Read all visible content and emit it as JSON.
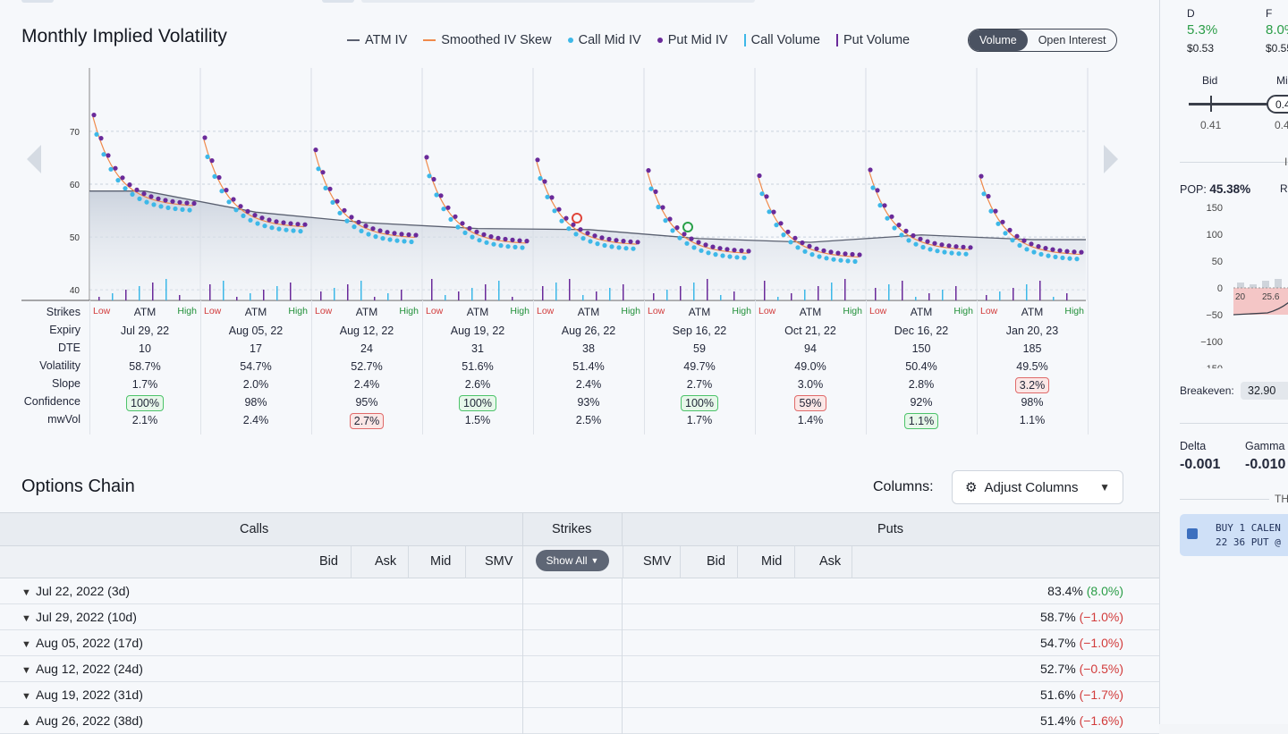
{
  "chart": {
    "title": "Monthly Implied Volatility",
    "legend": [
      {
        "label": "ATM IV",
        "kind": "line",
        "color": "#5a6070"
      },
      {
        "label": "Smoothed IV Skew",
        "kind": "line",
        "color": "#f08a4b"
      },
      {
        "label": "Call Mid IV",
        "kind": "dot",
        "color": "#3db8e8"
      },
      {
        "label": "Put Mid IV",
        "kind": "dot",
        "color": "#6a2a9a"
      },
      {
        "label": "Call Volume",
        "kind": "bar",
        "color": "#3db8e8"
      },
      {
        "label": "Put Volume",
        "kind": "bar",
        "color": "#6a2a9a"
      }
    ],
    "toggle": {
      "active": "Volume",
      "inactive": "Open Interest"
    }
  },
  "chart_data": {
    "type": "line",
    "yticks": [
      40,
      50,
      60,
      70
    ],
    "ylim": [
      38,
      82
    ],
    "series": [
      {
        "name": "ATM IV",
        "values": [
          58.7,
          54.7,
          52.7,
          51.6,
          51.4,
          49.7,
          49.0,
          50.4,
          49.5
        ]
      }
    ]
  },
  "row_labels": [
    "Strikes",
    "Expiry",
    "DTE",
    "Volatility",
    "Slope",
    "Confidence",
    "mwVol"
  ],
  "strike_labels": {
    "low": "Low",
    "atm": "ATM",
    "high": "High"
  },
  "expiries": [
    {
      "expiry": "Jul 29, 22",
      "dte": "10",
      "vol": "58.7%",
      "slope": "1.7%",
      "slope_flag": "",
      "conf": "100%",
      "conf_flag": "g",
      "mw": "2.1%",
      "mw_flag": ""
    },
    {
      "expiry": "Aug 05, 22",
      "dte": "17",
      "vol": "54.7%",
      "slope": "2.0%",
      "slope_flag": "",
      "conf": "98%",
      "conf_flag": "",
      "mw": "2.4%",
      "mw_flag": ""
    },
    {
      "expiry": "Aug 12, 22",
      "dte": "24",
      "vol": "52.7%",
      "slope": "2.4%",
      "slope_flag": "",
      "conf": "95%",
      "conf_flag": "",
      "mw": "2.7%",
      "mw_flag": "r"
    },
    {
      "expiry": "Aug 19, 22",
      "dte": "31",
      "vol": "51.6%",
      "slope": "2.6%",
      "slope_flag": "",
      "conf": "100%",
      "conf_flag": "g",
      "mw": "1.5%",
      "mw_flag": ""
    },
    {
      "expiry": "Aug 26, 22",
      "dte": "38",
      "vol": "51.4%",
      "slope": "2.4%",
      "slope_flag": "",
      "conf": "93%",
      "conf_flag": "",
      "mw": "2.5%",
      "mw_flag": ""
    },
    {
      "expiry": "Sep 16, 22",
      "dte": "59",
      "vol": "49.7%",
      "slope": "2.7%",
      "slope_flag": "",
      "conf": "100%",
      "conf_flag": "g",
      "mw": "1.7%",
      "mw_flag": ""
    },
    {
      "expiry": "Oct 21, 22",
      "dte": "94",
      "vol": "49.0%",
      "slope": "3.0%",
      "slope_flag": "",
      "conf": "59%",
      "conf_flag": "r",
      "mw": "1.4%",
      "mw_flag": ""
    },
    {
      "expiry": "Dec 16, 22",
      "dte": "150",
      "vol": "50.4%",
      "slope": "2.8%",
      "slope_flag": "",
      "conf": "92%",
      "conf_flag": "",
      "mw": "1.1%",
      "mw_flag": "g"
    },
    {
      "expiry": "Jan 20, 23",
      "dte": "185",
      "vol": "49.5%",
      "slope": "3.2%",
      "slope_flag": "r",
      "conf": "98%",
      "conf_flag": "",
      "mw": "1.1%",
      "mw_flag": ""
    }
  ],
  "options_chain": {
    "title": "Options Chain",
    "columns_label": "Columns:",
    "adjust_label": "Adjust Columns",
    "calls_header": "Calls",
    "strikes_header": "Strikes",
    "puts_header": "Puts",
    "call_cols": [
      "Bid",
      "Ask",
      "Mid",
      "SMV"
    ],
    "put_cols": [
      "SMV",
      "Bid",
      "Mid",
      "Ask"
    ],
    "show_all": "Show All",
    "rows": [
      {
        "expiry": "Jul 22, 2022 (3d)",
        "iv": "83.4%",
        "change": "(8.0%)",
        "dir": "up",
        "open": false
      },
      {
        "expiry": "Jul 29, 2022 (10d)",
        "iv": "58.7%",
        "change": "(−1.0%)",
        "dir": "down",
        "open": false
      },
      {
        "expiry": "Aug 05, 2022 (17d)",
        "iv": "54.7%",
        "change": "(−1.0%)",
        "dir": "down",
        "open": false
      },
      {
        "expiry": "Aug 12, 2022 (24d)",
        "iv": "52.7%",
        "change": "(−0.5%)",
        "dir": "down",
        "open": false
      },
      {
        "expiry": "Aug 19, 2022 (31d)",
        "iv": "51.6%",
        "change": "(−1.7%)",
        "dir": "down",
        "open": false
      },
      {
        "expiry": "Aug 26, 2022 (38d)",
        "iv": "51.4%",
        "change": "(−1.6%)",
        "dir": "down",
        "open": true
      }
    ]
  },
  "side": {
    "d_label": "D",
    "d_value": "5.3%",
    "d_price": "$0.53",
    "f_label": "F",
    "f_value": "8.0%",
    "f_price": "$0.55",
    "bid_label": "Bid",
    "bid_value": "0.41",
    "mid_label": "Mi",
    "mid_value": "0.4",
    "mid_value2": "0.4",
    "pop_label": "POP:",
    "pop_value": "45.38%",
    "pop_extra": "R",
    "pnl_ticks": [
      "150",
      "100",
      "50",
      "0",
      "−50",
      "−100",
      "−150"
    ],
    "pnl_x": [
      "20",
      "25.6"
    ],
    "breakeven_label": "Breakeven:",
    "breakeven_value": "32.90",
    "delta_label": "Delta",
    "delta_value": "-0.001",
    "gamma_label": "Gamma",
    "gamma_value": "-0.010",
    "theta_label": "TH",
    "trade_line1": "BUY 1 CALEN",
    "trade_line2": "22 36 PUT @"
  }
}
